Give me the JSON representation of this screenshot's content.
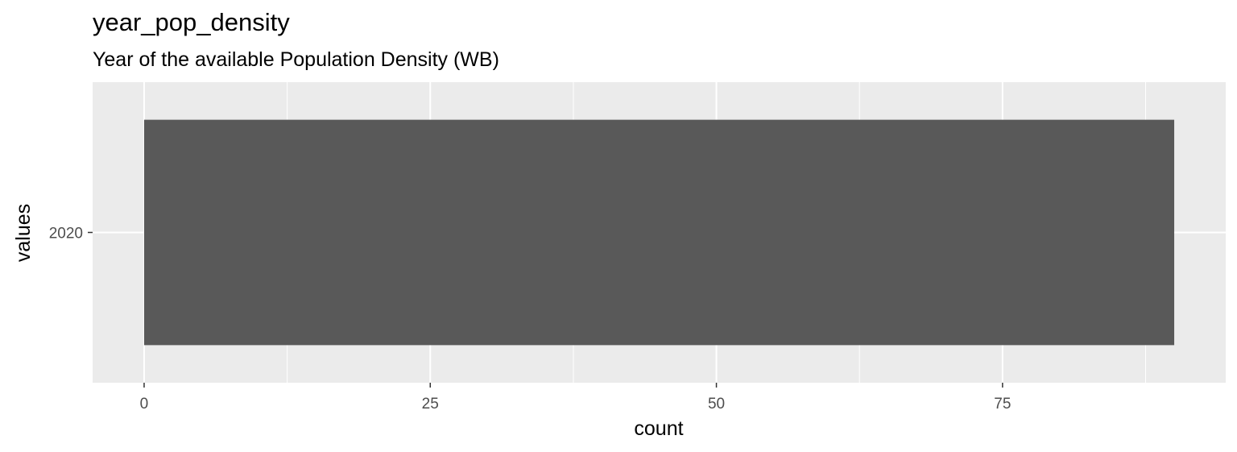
{
  "chart_data": {
    "type": "bar",
    "orientation": "horizontal",
    "title": "year_pop_density",
    "subtitle": "Year of the available Population Density (WB)",
    "xlabel": "count",
    "ylabel": "values",
    "categories": [
      "2020"
    ],
    "values": [
      90
    ],
    "xlim": [
      -4.5,
      94.5
    ],
    "xticks": [
      0,
      25,
      50,
      75
    ],
    "xtick_labels": [
      "0",
      "25",
      "50",
      "75"
    ],
    "grid": true,
    "legend": "none",
    "colors": {
      "panel_background": "#ebebeb",
      "grid": "#ffffff",
      "bar": "#595959",
      "tick_text": "#4d4d4d"
    }
  }
}
